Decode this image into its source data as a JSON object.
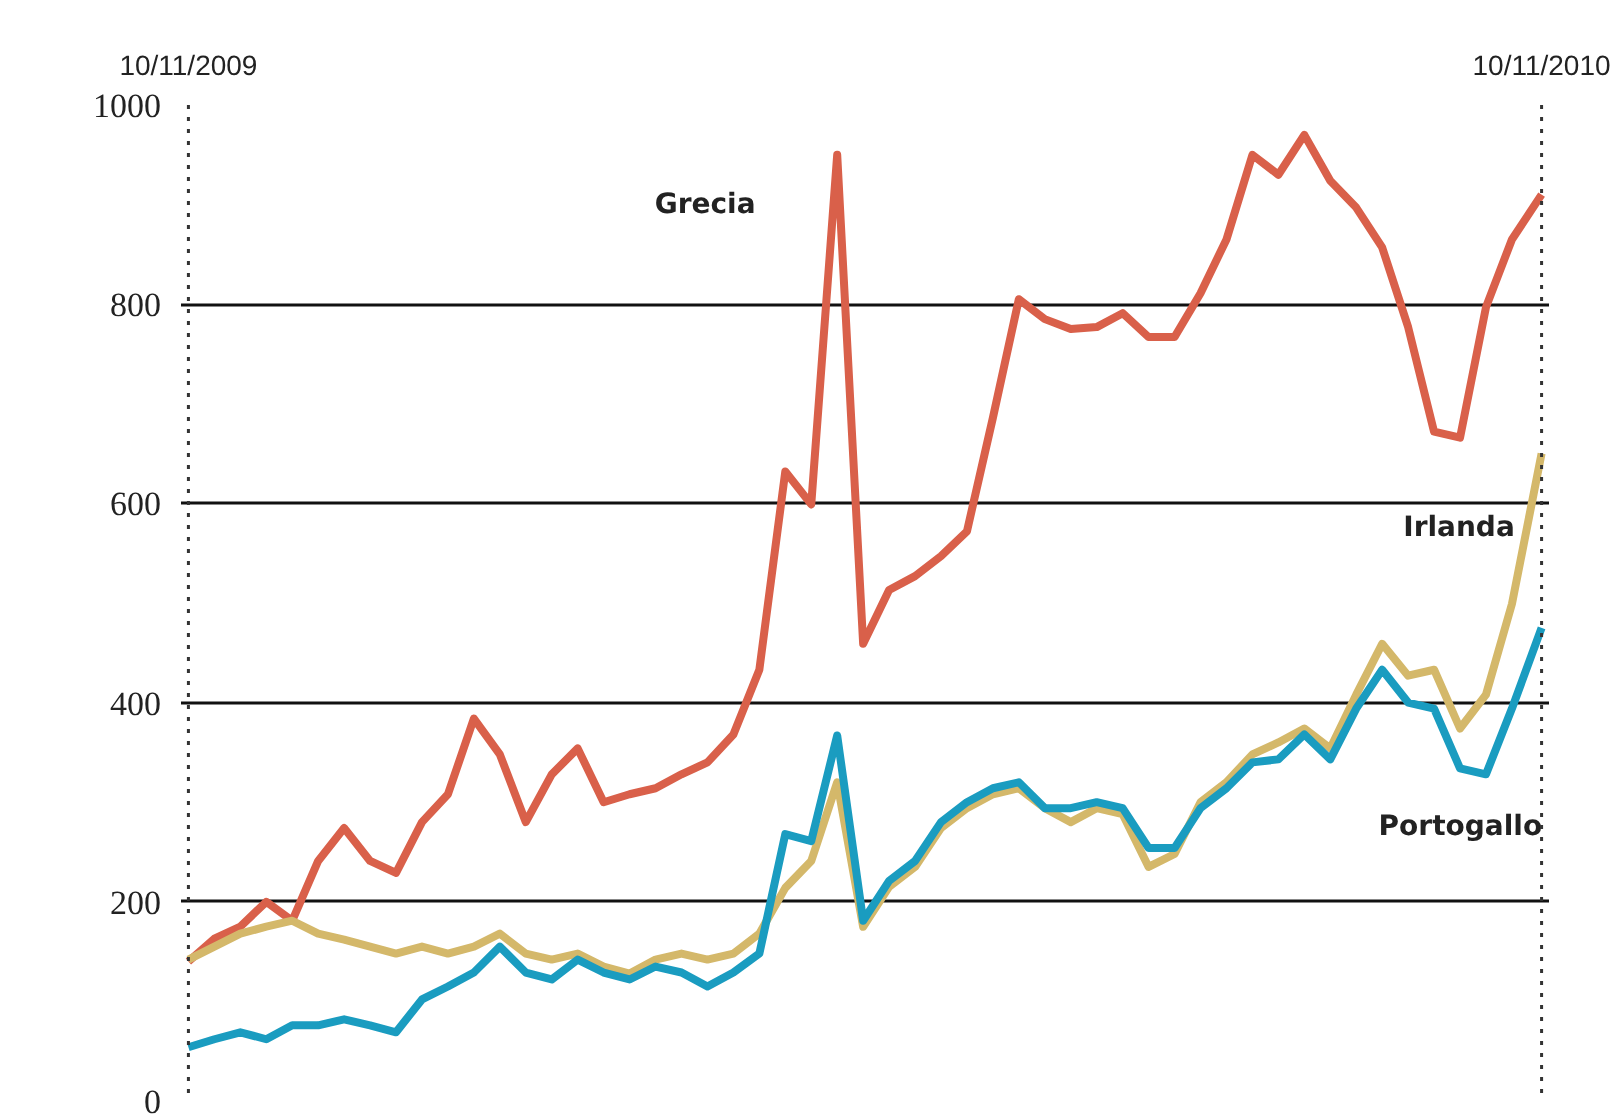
{
  "chart_data": {
    "type": "line",
    "x": [
      "2009-11-10",
      "2009-11-17",
      "2009-11-24",
      "2009-12-01",
      "2009-12-08",
      "2009-12-15",
      "2009-12-22",
      "2009-12-29",
      "2010-01-05",
      "2010-01-12",
      "2010-01-19",
      "2010-01-26",
      "2010-02-02",
      "2010-02-09",
      "2010-02-16",
      "2010-02-23",
      "2010-03-02",
      "2010-03-09",
      "2010-03-16",
      "2010-03-23",
      "2010-03-30",
      "2010-04-06",
      "2010-04-13",
      "2010-04-20",
      "2010-04-27",
      "2010-05-04",
      "2010-05-11",
      "2010-05-18",
      "2010-05-25",
      "2010-06-01",
      "2010-06-08",
      "2010-06-15",
      "2010-06-22",
      "2010-06-29",
      "2010-07-06",
      "2010-07-13",
      "2010-07-20",
      "2010-07-27",
      "2010-08-03",
      "2010-08-10",
      "2010-08-17",
      "2010-08-24",
      "2010-08-31",
      "2010-09-07",
      "2010-09-14",
      "2010-09-21",
      "2010-09-28",
      "2010-10-05",
      "2010-10-12",
      "2010-10-19",
      "2010-10-26",
      "2010-11-02",
      "2010-11-10"
    ],
    "series": [
      {
        "color": "#d9604a",
        "values": [
          140,
          163,
          175,
          200,
          181,
          241,
          274,
          241,
          229,
          280,
          308,
          384,
          348,
          280,
          328,
          354,
          300,
          308,
          314,
          328,
          340,
          368,
          433,
          632,
          599,
          950,
          459,
          513,
          527,
          547,
          572,
          686,
          805,
          785,
          775,
          777,
          791,
          767,
          767,
          811,
          865,
          950,
          930,
          970,
          924,
          897,
          857,
          777,
          672,
          666,
          797,
          865,
          910
        ]
      },
      {
        "color": "#d4b86a",
        "values": [
          142,
          155,
          168,
          175,
          181,
          168,
          162,
          155,
          148,
          155,
          148,
          155,
          168,
          148,
          142,
          148,
          135,
          128,
          142,
          148,
          142,
          148,
          168,
          214,
          241,
          320,
          175,
          215,
          235,
          274,
          294,
          308,
          314,
          294,
          280,
          294,
          288,
          235,
          248,
          300,
          320,
          348,
          360,
          374,
          354,
          408,
          459,
          427,
          433,
          374,
          408,
          499,
          650
        ]
      },
      {
        "color": "#1a9cc0",
        "values": [
          54,
          62,
          69,
          62,
          76,
          76,
          82,
          76,
          69,
          102,
          115,
          129,
          155,
          129,
          122,
          142,
          129,
          122,
          135,
          129,
          115,
          129,
          148,
          268,
          261,
          367,
          181,
          221,
          241,
          280,
          300,
          314,
          320,
          294,
          294,
          300,
          294,
          254,
          254,
          294,
          314,
          340,
          343,
          368,
          343,
          394,
          433,
          400,
          394,
          334,
          328,
          394,
          475
        ]
      }
    ],
    "xlim": [
      "2009-11-08",
      "2010-11-12"
    ],
    "xticks": [
      {
        "value": "2009-11-10",
        "label": "10/11/2009"
      },
      {
        "value": "2010-11-10",
        "label": "10/11/2010"
      }
    ],
    "ylim": [
      0,
      1000
    ],
    "yticks": [
      0,
      200,
      400,
      600,
      800,
      1000
    ],
    "grid": "y",
    "marker": "none",
    "line_style": "solid",
    "ref_lines": [
      {
        "axis": "x",
        "value": "2009-11-10",
        "color": "#333333",
        "line_style": "dotted"
      },
      {
        "axis": "x",
        "value": "2010-11-10",
        "color": "#333333",
        "line_style": "dotted"
      }
    ],
    "annotations": [
      "Grecia",
      "Irlanda",
      "Portogallo"
    ]
  }
}
